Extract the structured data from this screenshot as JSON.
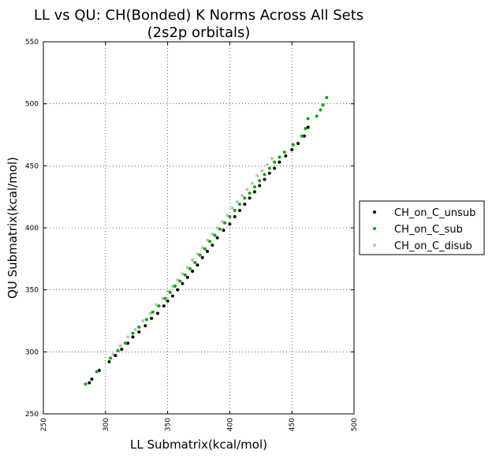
{
  "chart_data": {
    "type": "scatter",
    "title_line1": "LL vs QU: CH(Bonded) K Norms Across All Sets",
    "title_line2": "(2s2p orbitals)",
    "xlabel": "LL Submatrix(kcal/mol)",
    "ylabel": "QU Submatrix(kcal/mol)",
    "xlim": [
      250,
      500
    ],
    "ylim": [
      250,
      550
    ],
    "xticks": [
      250,
      300,
      350,
      400,
      450,
      500
    ],
    "yticks": [
      250,
      300,
      350,
      400,
      450,
      500,
      550
    ],
    "grid": true,
    "legend_position": "outside-right",
    "series": [
      {
        "name": "CH_on_C_unsub",
        "color": "#000000",
        "points": [
          [
            287,
            275
          ],
          [
            289,
            278
          ],
          [
            295,
            285
          ],
          [
            303,
            292
          ],
          [
            308,
            297
          ],
          [
            313,
            302
          ],
          [
            318,
            307
          ],
          [
            322,
            312
          ],
          [
            327,
            316
          ],
          [
            332,
            321
          ],
          [
            337,
            327
          ],
          [
            342,
            331
          ],
          [
            347,
            337
          ],
          [
            350,
            341
          ],
          [
            354,
            345
          ],
          [
            358,
            350
          ],
          [
            362,
            355
          ],
          [
            366,
            360
          ],
          [
            370,
            365
          ],
          [
            374,
            370
          ],
          [
            378,
            376
          ],
          [
            382,
            381
          ],
          [
            386,
            386
          ],
          [
            390,
            392
          ],
          [
            395,
            398
          ],
          [
            400,
            403
          ],
          [
            404,
            409
          ],
          [
            408,
            414
          ],
          [
            412,
            419
          ],
          [
            416,
            424
          ],
          [
            420,
            429
          ],
          [
            424,
            434
          ],
          [
            428,
            439
          ],
          [
            432,
            444
          ],
          [
            436,
            448
          ],
          [
            440,
            453
          ],
          [
            445,
            458
          ],
          [
            450,
            463
          ],
          [
            455,
            468
          ],
          [
            460,
            474
          ],
          [
            463,
            481
          ]
        ]
      },
      {
        "name": "CH_on_C_sub",
        "color": "#00aa00",
        "points": [
          [
            284,
            274
          ],
          [
            293,
            284
          ],
          [
            304,
            295
          ],
          [
            310,
            301
          ],
          [
            316,
            307
          ],
          [
            322,
            315
          ],
          [
            327,
            320
          ],
          [
            333,
            326
          ],
          [
            338,
            332
          ],
          [
            343,
            337
          ],
          [
            348,
            343
          ],
          [
            352,
            348
          ],
          [
            356,
            353
          ],
          [
            360,
            357
          ],
          [
            364,
            362
          ],
          [
            368,
            367
          ],
          [
            372,
            372
          ],
          [
            376,
            378
          ],
          [
            380,
            383
          ],
          [
            384,
            389
          ],
          [
            388,
            394
          ],
          [
            392,
            399
          ],
          [
            396,
            404
          ],
          [
            400,
            409
          ],
          [
            404,
            414
          ],
          [
            408,
            419
          ],
          [
            412,
            424
          ],
          [
            416,
            428
          ],
          [
            420,
            433
          ],
          [
            424,
            438
          ],
          [
            428,
            443
          ],
          [
            432,
            448
          ],
          [
            436,
            453
          ],
          [
            440,
            457
          ],
          [
            444,
            461
          ],
          [
            451,
            467
          ],
          [
            458,
            474
          ],
          [
            461,
            480
          ],
          [
            463,
            488
          ],
          [
            470,
            490
          ],
          [
            473,
            495
          ],
          [
            475,
            499
          ],
          [
            478,
            505
          ]
        ]
      },
      {
        "name": "CH_on_C_disub",
        "color": "#c0c0c0",
        "points": [
          [
            306,
            298
          ],
          [
            312,
            305
          ],
          [
            318,
            312
          ],
          [
            324,
            318
          ],
          [
            330,
            325
          ],
          [
            336,
            331
          ],
          [
            341,
            338
          ],
          [
            346,
            343
          ],
          [
            350,
            349
          ],
          [
            354,
            353
          ],
          [
            358,
            358
          ],
          [
            362,
            363
          ],
          [
            366,
            368
          ],
          [
            370,
            374
          ],
          [
            374,
            379
          ],
          [
            378,
            384
          ],
          [
            382,
            390
          ],
          [
            386,
            395
          ],
          [
            390,
            400
          ],
          [
            394,
            405
          ],
          [
            398,
            410
          ],
          [
            402,
            416
          ],
          [
            406,
            421
          ],
          [
            410,
            426
          ],
          [
            414,
            431
          ],
          [
            418,
            436
          ],
          [
            422,
            442
          ],
          [
            426,
            446
          ],
          [
            430,
            451
          ],
          [
            434,
            456
          ]
        ]
      }
    ]
  }
}
